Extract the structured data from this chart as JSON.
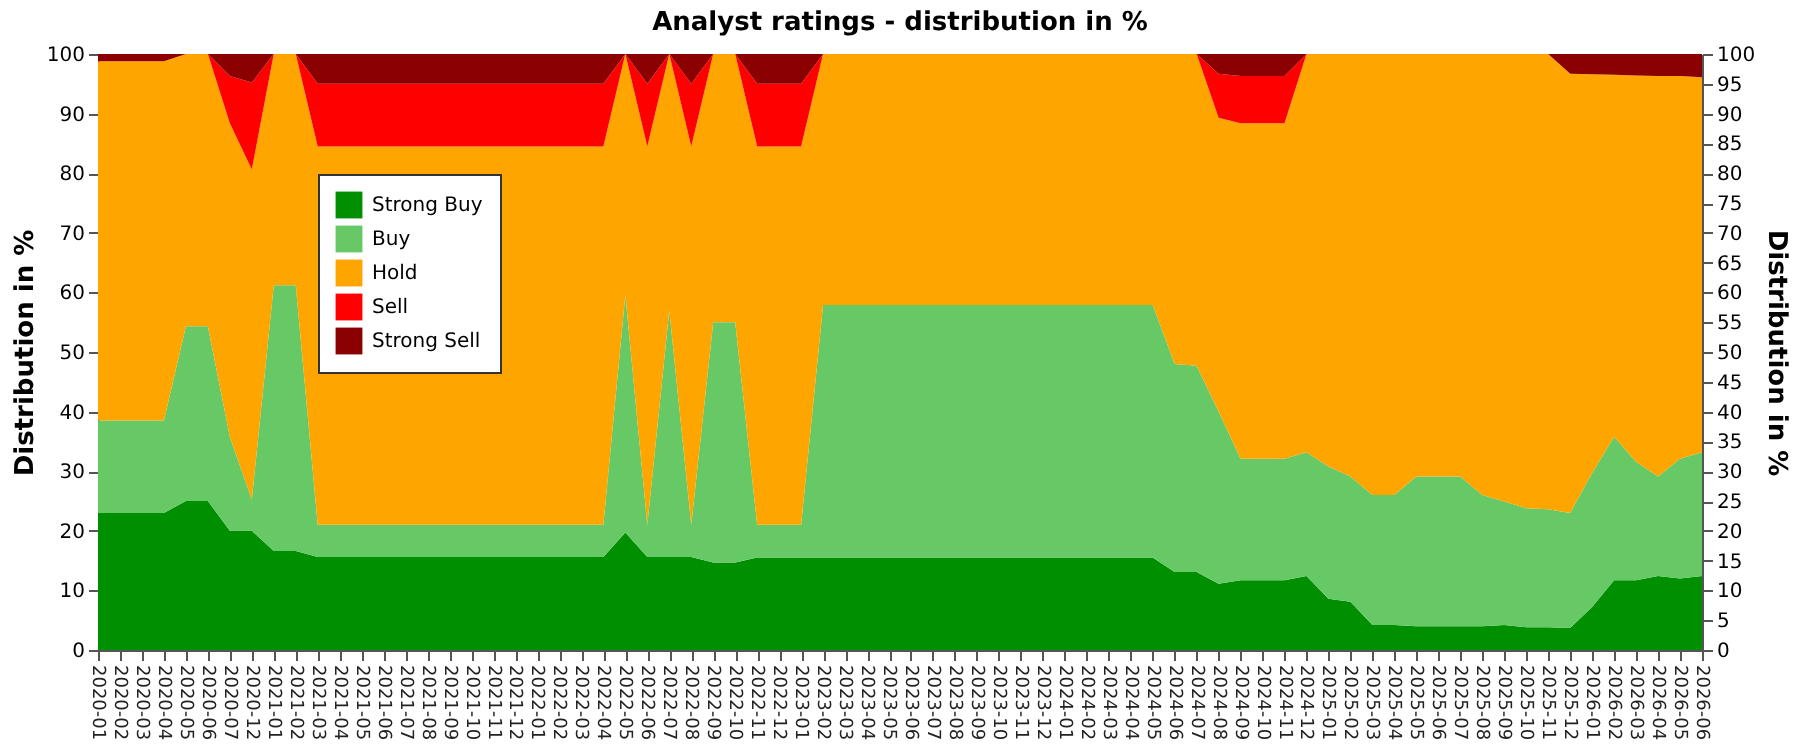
{
  "chart_data": {
    "type": "area",
    "title": "Analyst ratings - distribution in %",
    "ylabel": "Distribution in %",
    "y2label": "Distribution in %",
    "stacked": true,
    "grid": "y",
    "legend": "top left",
    "categories": [
      "2020-01",
      "2020-02",
      "2020-03",
      "2020-04",
      "2020-05",
      "2020-06",
      "2020-07",
      "2020-12",
      "2021-01",
      "2021-02",
      "2021-03",
      "2021-04",
      "2021-05",
      "2021-06",
      "2021-07",
      "2021-08",
      "2021-09",
      "2021-10",
      "2021-11",
      "2021-12",
      "2022-01",
      "2022-02",
      "2022-03",
      "2022-04",
      "2022-05",
      "2022-06",
      "2022-07",
      "2022-08",
      "2022-09",
      "2022-10",
      "2022-11",
      "2022-12",
      "2023-01",
      "2023-02",
      "2023-03",
      "2023-04",
      "2023-05",
      "2023-06",
      "2023-07",
      "2023-08",
      "2023-09",
      "2023-10",
      "2023-11",
      "2023-12",
      "2024-01",
      "2024-02",
      "2024-03",
      "2024-04",
      "2024-05",
      "2024-06",
      "2024-07",
      "2024-08",
      "2024-09",
      "2024-10",
      "2024-11",
      "2024-12",
      "2025-01",
      "2025-02",
      "2025-03",
      "2025-04",
      "2025-05",
      "2025-06",
      "2025-07",
      "2025-08",
      "2025-09",
      "2025-10",
      "2025-11",
      "2025-12",
      "2026-01",
      "2026-02",
      "2026-03",
      "2026-04",
      "2026-05",
      "2026-06"
    ],
    "ylim": [
      0,
      100
    ],
    "yticks": [
      0,
      10,
      20,
      30,
      40,
      50,
      60,
      70,
      80,
      90,
      100
    ],
    "y2lim": [
      0,
      100
    ],
    "y2ticks": [
      0,
      5,
      10,
      15,
      20,
      25,
      30,
      35,
      40,
      45,
      50,
      55,
      60,
      65,
      70,
      75,
      80,
      85,
      90,
      95,
      100
    ],
    "series": [
      {
        "name": "Strong Buy",
        "color": "#008f00",
        "values": [
          23,
          23,
          23,
          23,
          25,
          25,
          20,
          20,
          16.6,
          16.6,
          15.6,
          15.6,
          15.6,
          15.6,
          15.6,
          15.6,
          15.6,
          15.6,
          15.6,
          15.6,
          15.6,
          15.6,
          15.6,
          15.6,
          19.7,
          15.6,
          15.6,
          15.6,
          14.7,
          14.7,
          15.5,
          15.5,
          15.5,
          15.5,
          15.5,
          15.5,
          15.5,
          15.5,
          15.5,
          15.5,
          15.5,
          15.5,
          15.5,
          15.5,
          15.5,
          15.5,
          15.5,
          15.5,
          15.5,
          13.1,
          13.1,
          11.1,
          11.7,
          11.7,
          11.7,
          12.4,
          8.6,
          8.1,
          4.2,
          4.2,
          4,
          4,
          4,
          4,
          4.2,
          3.8,
          3.8,
          3.7,
          7.2,
          11.7,
          11.7,
          12.4,
          12,
          12.4
        ]
      },
      {
        "name": "Buy",
        "color": "#66c966",
        "values": [
          15.5,
          15.5,
          15.5,
          15.5,
          29.3,
          29.3,
          15.8,
          5.2,
          44.6,
          44.6,
          5.4,
          5.4,
          5.4,
          5.4,
          5.4,
          5.4,
          5.4,
          5.4,
          5.4,
          5.4,
          5.4,
          5.4,
          5.4,
          5.4,
          39.9,
          5.4,
          41.4,
          5.4,
          40.3,
          40.3,
          5.5,
          5.5,
          5.5,
          42.4,
          42.4,
          42.4,
          42.4,
          42.4,
          42.4,
          42.4,
          42.4,
          42.4,
          42.4,
          42.4,
          42.4,
          42.4,
          42.4,
          42.4,
          42.4,
          34.9,
          34.6,
          28.9,
          20.4,
          20.4,
          20.4,
          20.8,
          22.2,
          21,
          21.8,
          21.8,
          25.1,
          25.1,
          25.1,
          22,
          20.7,
          20,
          19.8,
          19.3,
          22.5,
          24.1,
          19.9,
          16.7,
          20.1,
          20.8
        ]
      },
      {
        "name": "Hold",
        "color": "#ffa500",
        "values": [
          60.3,
          60.3,
          60.3,
          60.3,
          45.7,
          45.7,
          52.6,
          55.4,
          38.8,
          38.8,
          63.5,
          63.5,
          63.5,
          63.5,
          63.5,
          63.5,
          63.5,
          63.5,
          63.5,
          63.5,
          63.5,
          63.5,
          63.5,
          63.5,
          40.4,
          63.5,
          43,
          63.5,
          45,
          45,
          63.5,
          63.5,
          63.5,
          42.1,
          42.1,
          42.1,
          42.1,
          42.1,
          42.1,
          42.1,
          42.1,
          42.1,
          42.1,
          42.1,
          42.1,
          42.1,
          42.1,
          42.1,
          42.1,
          52,
          52.3,
          49.3,
          56.3,
          56.3,
          56.3,
          66.8,
          69.2,
          70.9,
          74,
          74,
          70.9,
          70.9,
          70.9,
          74,
          75.1,
          76.2,
          76.4,
          73.7,
          66.9,
          60.7,
          64.8,
          67.2,
          64.2,
          62.9
        ]
      },
      {
        "name": "Sell",
        "color": "#ff0000",
        "values": [
          0,
          0,
          0,
          0,
          0,
          0,
          7.9,
          14.6,
          0,
          0,
          10.5,
          10.5,
          10.5,
          10.5,
          10.5,
          10.5,
          10.5,
          10.5,
          10.5,
          10.5,
          10.5,
          10.5,
          10.5,
          10.5,
          0,
          10.5,
          0,
          10.5,
          0,
          0,
          10.5,
          10.5,
          10.5,
          0,
          0,
          0,
          0,
          0,
          0,
          0,
          0,
          0,
          0,
          0,
          0,
          0,
          0,
          0,
          0,
          0,
          0,
          7.4,
          7.9,
          7.9,
          7.9,
          0,
          0,
          0,
          0,
          0,
          0,
          0,
          0,
          0,
          0,
          0,
          0,
          0,
          0,
          0,
          0,
          0,
          0,
          0
        ]
      },
      {
        "name": "Strong Sell",
        "color": "#8b0000",
        "values": [
          1.2,
          1.2,
          1.2,
          1.2,
          0,
          0,
          3.7,
          4.8,
          0,
          0,
          5,
          5,
          5,
          5,
          5,
          5,
          5,
          5,
          5,
          5,
          5,
          5,
          5,
          5,
          0,
          5,
          0,
          5,
          0,
          0,
          5,
          5,
          5,
          0,
          0,
          0,
          0,
          0,
          0,
          0,
          0,
          0,
          0,
          0,
          0,
          0,
          0,
          0,
          0,
          0,
          0,
          3.3,
          3.7,
          3.7,
          3.7,
          0,
          0,
          0,
          0,
          0,
          0,
          0,
          0,
          0,
          0,
          0,
          0,
          3.3,
          3.4,
          3.5,
          3.6,
          3.7,
          3.7,
          3.9
        ]
      }
    ]
  }
}
